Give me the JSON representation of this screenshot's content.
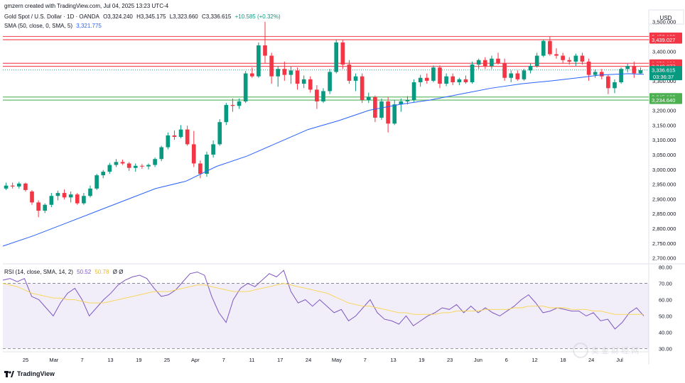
{
  "credit": "gmzern created with TradingView.com, Jul 04, 2025 13:23 UTC-4",
  "currency": "USD",
  "brand": "TradingView",
  "watermark": "奥 金 财 经 网",
  "symbol": {
    "name": "Gold Spot / U.S. Dollar · 1D · OANDA",
    "o": "O3,324.240",
    "h": "H3,345.175",
    "l": "L3,323.660",
    "c": "C3,336.615",
    "chg": "+10.585 (+0.32%)"
  },
  "sma": {
    "label": "SMA (50, close, 0, SMA, 5)",
    "value": "3,321.775"
  },
  "rsi": {
    "label": "RSI (14, close, SMA, 14, 2)",
    "value": "50.52",
    "ma": "50.78",
    "extra": "Ø Ø"
  },
  "price_tags": [
    {
      "text": "3,450.109",
      "price": 3450.109,
      "color": "#f23645"
    },
    {
      "text": "3,439.027",
      "price": 3439.027,
      "color": "#f23645"
    },
    {
      "text": "3,359.186",
      "price": 3359.186,
      "color": "#f23645"
    },
    {
      "text": "3,349.077",
      "price": 3349.077,
      "color": "#f23645"
    },
    {
      "text": "3,336.615",
      "price": 3336.615,
      "color": "#089981",
      "sub": "03:36:37"
    },
    {
      "text": "3,245.130",
      "price": 3245.13,
      "color": "#4caf50"
    },
    {
      "text": "3,234.640",
      "price": 3234.64,
      "color": "#4caf50"
    }
  ],
  "x_ticks": [
    "25",
    "Mar",
    "7",
    "13",
    "19",
    "25",
    "Apr",
    "7",
    "11",
    "17",
    "24",
    "May",
    "7",
    "13",
    "19",
    "23",
    "Jun",
    "6",
    "12",
    "18",
    "24",
    "Jul"
  ],
  "colors": {
    "up": "#089981",
    "down": "#f23645",
    "sma": "#2962ff",
    "rsi": "#7e57c2",
    "rsi_ma": "#f7d44c"
  },
  "chart_data": [
    {
      "type": "candlestick",
      "title": "Gold Spot / U.S. Dollar · 1D · OANDA",
      "ylim": [
        2680,
        3540
      ],
      "y_ticks": [
        "3,500.000",
        "3,450.000",
        "3,400.000",
        "3,350.000",
        "3,300.000",
        "3,250.000",
        "3,200.000",
        "3,150.000",
        "3,100.000",
        "3,050.000",
        "3,000.000",
        "2,950.000",
        "2,900.000",
        "2,850.000",
        "2,800.000",
        "2,750.000",
        "2,700.000"
      ],
      "y_tick_values": [
        3500,
        3450,
        3400,
        3350,
        3300,
        3250,
        3200,
        3150,
        3100,
        3050,
        3000,
        2950,
        2900,
        2850,
        2800,
        2750,
        2700
      ],
      "candles": [
        {
          "o": 2935,
          "h": 2955,
          "l": 2930,
          "c": 2945
        },
        {
          "o": 2945,
          "h": 2955,
          "l": 2935,
          "c": 2942
        },
        {
          "o": 2942,
          "h": 2958,
          "l": 2935,
          "c": 2952
        },
        {
          "o": 2952,
          "h": 2955,
          "l": 2925,
          "c": 2930
        },
        {
          "o": 2925,
          "h": 2930,
          "l": 2880,
          "c": 2888
        },
        {
          "o": 2888,
          "h": 2895,
          "l": 2838,
          "c": 2860
        },
        {
          "o": 2860,
          "h": 2885,
          "l": 2852,
          "c": 2880
        },
        {
          "o": 2880,
          "h": 2920,
          "l": 2872,
          "c": 2910
        },
        {
          "o": 2910,
          "h": 2928,
          "l": 2895,
          "c": 2920
        },
        {
          "o": 2920,
          "h": 2932,
          "l": 2898,
          "c": 2905
        },
        {
          "o": 2905,
          "h": 2925,
          "l": 2888,
          "c": 2915
        },
        {
          "o": 2915,
          "h": 2920,
          "l": 2880,
          "c": 2885
        },
        {
          "o": 2885,
          "h": 2920,
          "l": 2880,
          "c": 2910
        },
        {
          "o": 2910,
          "h": 2945,
          "l": 2905,
          "c": 2935
        },
        {
          "o": 2935,
          "h": 2985,
          "l": 2930,
          "c": 2980
        },
        {
          "o": 2980,
          "h": 2998,
          "l": 2970,
          "c": 2992
        },
        {
          "o": 2992,
          "h": 3022,
          "l": 2985,
          "c": 3015
        },
        {
          "o": 3015,
          "h": 3035,
          "l": 3008,
          "c": 3025
        },
        {
          "o": 3025,
          "h": 3033,
          "l": 3015,
          "c": 3020
        },
        {
          "o": 3020,
          "h": 3025,
          "l": 2995,
          "c": 3005
        },
        {
          "o": 3005,
          "h": 3020,
          "l": 2992,
          "c": 3012
        },
        {
          "o": 3012,
          "h": 3018,
          "l": 3002,
          "c": 3010
        },
        {
          "o": 3010,
          "h": 3020,
          "l": 3000,
          "c": 3015
        },
        {
          "o": 3015,
          "h": 3040,
          "l": 3008,
          "c": 3035
        },
        {
          "o": 3035,
          "h": 3080,
          "l": 3028,
          "c": 3075
        },
        {
          "o": 3075,
          "h": 3125,
          "l": 3068,
          "c": 3115
        },
        {
          "o": 3115,
          "h": 3132,
          "l": 3100,
          "c": 3110
        },
        {
          "o": 3110,
          "h": 3150,
          "l": 3105,
          "c": 3135
        },
        {
          "o": 3135,
          "h": 3148,
          "l": 3080,
          "c": 3085
        },
        {
          "o": 3085,
          "h": 3130,
          "l": 3008,
          "c": 3020
        },
        {
          "o": 3020,
          "h": 3030,
          "l": 2970,
          "c": 2985
        },
        {
          "o": 2985,
          "h": 3060,
          "l": 2975,
          "c": 3050
        },
        {
          "o": 3050,
          "h": 3098,
          "l": 3040,
          "c": 3085
        },
        {
          "o": 3085,
          "h": 3170,
          "l": 3080,
          "c": 3160
        },
        {
          "o": 3160,
          "h": 3225,
          "l": 3150,
          "c": 3218
        },
        {
          "o": 3218,
          "h": 3240,
          "l": 3195,
          "c": 3215
        },
        {
          "o": 3215,
          "h": 3240,
          "l": 3205,
          "c": 3230
        },
        {
          "o": 3230,
          "h": 3333,
          "l": 3225,
          "c": 3325
        },
        {
          "o": 3325,
          "h": 3345,
          "l": 3310,
          "c": 3315
        },
        {
          "o": 3315,
          "h": 3430,
          "l": 3310,
          "c": 3420
        },
        {
          "o": 3420,
          "h": 3500,
          "l": 3360,
          "c": 3385
        },
        {
          "o": 3385,
          "h": 3395,
          "l": 3290,
          "c": 3315
        },
        {
          "o": 3315,
          "h": 3350,
          "l": 3280,
          "c": 3340
        },
        {
          "o": 3340,
          "h": 3365,
          "l": 3300,
          "c": 3320
        },
        {
          "o": 3320,
          "h": 3348,
          "l": 3290,
          "c": 3335
        },
        {
          "o": 3335,
          "h": 3345,
          "l": 3270,
          "c": 3290
        },
        {
          "o": 3290,
          "h": 3318,
          "l": 3275,
          "c": 3305
        },
        {
          "o": 3305,
          "h": 3315,
          "l": 3260,
          "c": 3270
        },
        {
          "o": 3270,
          "h": 3285,
          "l": 3205,
          "c": 3230
        },
        {
          "o": 3230,
          "h": 3275,
          "l": 3225,
          "c": 3265
        },
        {
          "o": 3265,
          "h": 3340,
          "l": 3255,
          "c": 3330
        },
        {
          "o": 3330,
          "h": 3440,
          "l": 3325,
          "c": 3430
        },
        {
          "o": 3430,
          "h": 3438,
          "l": 3340,
          "c": 3355
        },
        {
          "o": 3355,
          "h": 3370,
          "l": 3290,
          "c": 3300
        },
        {
          "o": 3300,
          "h": 3325,
          "l": 3265,
          "c": 3315
        },
        {
          "o": 3315,
          "h": 3325,
          "l": 3225,
          "c": 3235
        },
        {
          "o": 3235,
          "h": 3260,
          "l": 3225,
          "c": 3245
        },
        {
          "o": 3245,
          "h": 3250,
          "l": 3160,
          "c": 3175
        },
        {
          "o": 3175,
          "h": 3240,
          "l": 3168,
          "c": 3230
        },
        {
          "o": 3230,
          "h": 3245,
          "l": 3125,
          "c": 3155
        },
        {
          "o": 3155,
          "h": 3235,
          "l": 3150,
          "c": 3220
        },
        {
          "o": 3220,
          "h": 3240,
          "l": 3195,
          "c": 3230
        },
        {
          "o": 3230,
          "h": 3248,
          "l": 3220,
          "c": 3235
        },
        {
          "o": 3235,
          "h": 3305,
          "l": 3228,
          "c": 3295
        },
        {
          "o": 3295,
          "h": 3320,
          "l": 3280,
          "c": 3310
        },
        {
          "o": 3310,
          "h": 3325,
          "l": 3290,
          "c": 3300
        },
        {
          "o": 3300,
          "h": 3352,
          "l": 3295,
          "c": 3345
        },
        {
          "o": 3345,
          "h": 3352,
          "l": 3275,
          "c": 3290
        },
        {
          "o": 3290,
          "h": 3325,
          "l": 3282,
          "c": 3315
        },
        {
          "o": 3315,
          "h": 3325,
          "l": 3285,
          "c": 3295
        },
        {
          "o": 3295,
          "h": 3310,
          "l": 3285,
          "c": 3305
        },
        {
          "o": 3305,
          "h": 3318,
          "l": 3290,
          "c": 3295
        },
        {
          "o": 3295,
          "h": 3365,
          "l": 3290,
          "c": 3355
        },
        {
          "o": 3355,
          "h": 3375,
          "l": 3340,
          "c": 3370
        },
        {
          "o": 3370,
          "h": 3380,
          "l": 3340,
          "c": 3350
        },
        {
          "o": 3350,
          "h": 3385,
          "l": 3340,
          "c": 3375
        },
        {
          "o": 3375,
          "h": 3395,
          "l": 3355,
          "c": 3360
        },
        {
          "o": 3360,
          "h": 3375,
          "l": 3300,
          "c": 3310
        },
        {
          "o": 3310,
          "h": 3335,
          "l": 3295,
          "c": 3325
        },
        {
          "o": 3325,
          "h": 3335,
          "l": 3300,
          "c": 3305
        },
        {
          "o": 3305,
          "h": 3340,
          "l": 3300,
          "c": 3335
        },
        {
          "o": 3335,
          "h": 3358,
          "l": 3325,
          "c": 3350
        },
        {
          "o": 3350,
          "h": 3395,
          "l": 3345,
          "c": 3385
        },
        {
          "o": 3385,
          "h": 3440,
          "l": 3380,
          "c": 3435
        },
        {
          "o": 3435,
          "h": 3450,
          "l": 3385,
          "c": 3390
        },
        {
          "o": 3390,
          "h": 3410,
          "l": 3375,
          "c": 3385
        },
        {
          "o": 3385,
          "h": 3395,
          "l": 3360,
          "c": 3370
        },
        {
          "o": 3370,
          "h": 3380,
          "l": 3355,
          "c": 3365
        },
        {
          "o": 3365,
          "h": 3392,
          "l": 3350,
          "c": 3385
        },
        {
          "o": 3385,
          "h": 3395,
          "l": 3355,
          "c": 3365
        },
        {
          "o": 3365,
          "h": 3375,
          "l": 3300,
          "c": 3320
        },
        {
          "o": 3320,
          "h": 3338,
          "l": 3310,
          "c": 3330
        },
        {
          "o": 3330,
          "h": 3340,
          "l": 3305,
          "c": 3315
        },
        {
          "o": 3315,
          "h": 3320,
          "l": 3255,
          "c": 3275
        },
        {
          "o": 3275,
          "h": 3305,
          "l": 3258,
          "c": 3295
        },
        {
          "o": 3295,
          "h": 3345,
          "l": 3290,
          "c": 3340
        },
        {
          "o": 3340,
          "h": 3358,
          "l": 3328,
          "c": 3350
        },
        {
          "o": 3350,
          "h": 3365,
          "l": 3310,
          "c": 3325
        },
        {
          "o": 3325,
          "h": 3345,
          "l": 3323,
          "c": 3336
        }
      ],
      "sma_series": [
        [
          0,
          2740
        ],
        [
          10,
          2775
        ],
        [
          20,
          2815
        ],
        [
          30,
          2855
        ],
        [
          40,
          2895
        ],
        [
          50,
          2935
        ],
        [
          60,
          2960
        ],
        [
          70,
          3010
        ],
        [
          80,
          3045
        ],
        [
          90,
          3090
        ],
        [
          100,
          3135
        ],
        [
          110,
          3165
        ],
        [
          120,
          3200
        ],
        [
          130,
          3220
        ],
        [
          140,
          3235
        ],
        [
          150,
          3255
        ],
        [
          160,
          3275
        ],
        [
          170,
          3290
        ],
        [
          180,
          3300
        ],
        [
          190,
          3312
        ],
        [
          196,
          3320
        ],
        [
          205,
          3324
        ],
        [
          210,
          3322
        ]
      ],
      "sma_x_range": [
        0,
        210
      ]
    },
    {
      "type": "line",
      "title": "RSI (14, close, SMA, 14, 2)",
      "ylim": [
        28,
        82
      ],
      "y_ticks": [
        "80.00",
        "70.00",
        "60.00",
        "50.00",
        "40.00",
        "30.00"
      ],
      "y_tick_values": [
        80,
        70,
        60,
        50,
        40,
        30
      ],
      "bands": {
        "upper": 70,
        "lower": 30
      },
      "series": [
        {
          "name": "RSI",
          "values": [
            72,
            73,
            71,
            73,
            62,
            60,
            55,
            50,
            58,
            64,
            67,
            60,
            50,
            55,
            60,
            64,
            69,
            72,
            74,
            75,
            73,
            67,
            62,
            63,
            66,
            71,
            76,
            77,
            75,
            62,
            52,
            46,
            60,
            67,
            70,
            68,
            72,
            76,
            74,
            78,
            65,
            58,
            60,
            56,
            60,
            56,
            52,
            54,
            47,
            50,
            55,
            60,
            52,
            48,
            47,
            45,
            50,
            44,
            47,
            50,
            52,
            55,
            54,
            57,
            52,
            56,
            52,
            55,
            52,
            50,
            53,
            56,
            60,
            63,
            58,
            52,
            53,
            55,
            54,
            53,
            53,
            50,
            52,
            47,
            48,
            42,
            46,
            52,
            55,
            50
          ],
          "color": "#7e57c2"
        },
        {
          "name": "RSI-MA",
          "values": [
            70,
            69,
            68,
            66,
            64,
            63,
            62,
            61,
            61,
            60,
            60,
            59,
            58,
            58,
            58,
            59,
            60,
            61,
            62,
            63,
            64,
            65,
            65,
            65,
            66,
            67,
            68,
            69,
            69,
            68,
            67,
            66,
            65,
            65,
            65,
            66,
            67,
            68,
            69,
            70,
            69,
            68,
            67,
            66,
            65,
            64,
            62,
            60,
            58,
            57,
            56,
            56,
            55,
            54,
            53,
            52,
            52,
            51,
            51,
            51,
            51,
            52,
            52,
            53,
            53,
            53,
            53,
            54,
            54,
            54,
            54,
            55,
            55,
            56,
            56,
            56,
            55,
            55,
            55,
            54,
            54,
            54,
            53,
            53,
            52,
            51,
            51,
            51,
            51,
            51
          ],
          "color": "#f7d44c"
        }
      ]
    }
  ]
}
